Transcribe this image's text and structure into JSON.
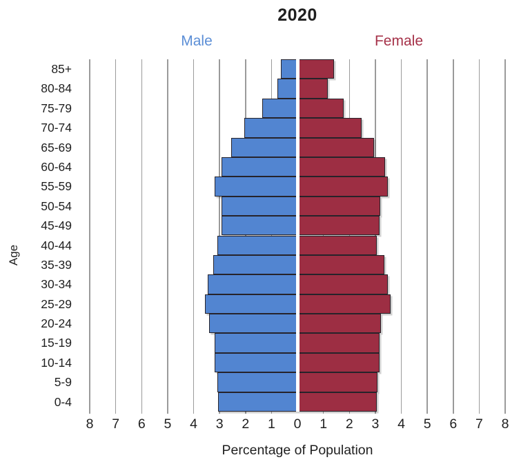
{
  "chart_data": {
    "type": "bar",
    "subtype": "population-pyramid",
    "title": "2020",
    "xlabel": "Percentage of Population",
    "ylabel": "Age",
    "categories": [
      "85+",
      "80-84",
      "75-79",
      "70-74",
      "65-69",
      "60-64",
      "55-59",
      "50-54",
      "45-49",
      "40-44",
      "35-39",
      "30-34",
      "25-29",
      "20-24",
      "15-19",
      "10-14",
      "5-9",
      "0-4"
    ],
    "series": [
      {
        "name": "Male",
        "side": "left",
        "color": "#5285d1",
        "values": [
          0.64,
          0.78,
          1.35,
          2.05,
          2.54,
          2.93,
          3.2,
          2.92,
          2.92,
          3.07,
          3.25,
          3.45,
          3.55,
          3.39,
          3.2,
          3.18,
          3.09,
          3.06
        ]
      },
      {
        "name": "Female",
        "side": "right",
        "color": "#9d2e43",
        "values": [
          1.42,
          1.16,
          1.77,
          2.48,
          2.95,
          3.37,
          3.48,
          3.19,
          3.17,
          3.06,
          3.34,
          3.48,
          3.59,
          3.22,
          3.17,
          3.17,
          3.07,
          3.05
        ]
      }
    ],
    "xlim": [
      -8,
      8
    ],
    "xtick_values": [
      -8,
      -7,
      -6,
      -5,
      -4,
      -3,
      -2,
      -1,
      0,
      1,
      2,
      3,
      4,
      5,
      6,
      7,
      8
    ],
    "xtick_labels": [
      "8",
      "7",
      "6",
      "5",
      "4",
      "3",
      "2",
      "1",
      "0",
      "1",
      "2",
      "3",
      "4",
      "5",
      "6",
      "7",
      "8"
    ],
    "grid": "vertical",
    "legend_position": "above-plot",
    "colors": {
      "male_fill": "#5285d1",
      "female_fill": "#9d2e43",
      "male_label": "#5b8ed6",
      "female_label": "#a53148",
      "bar_border": "#26232a",
      "gridline": "#9a9a9a",
      "text": "#1f1f1f"
    }
  }
}
